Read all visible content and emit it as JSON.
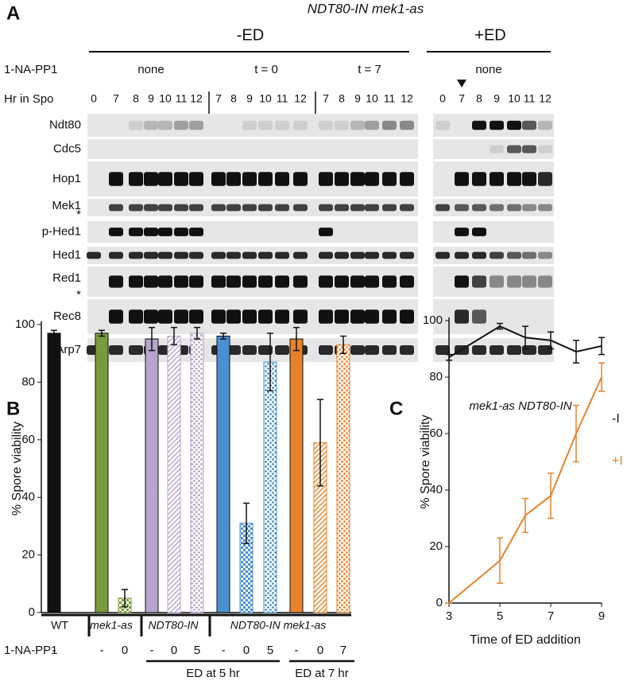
{
  "panel_a": {
    "label": "A",
    "title": "NDT80-IN mek1-as",
    "drug_label": "1-NA-PP1",
    "time_label": "Hr in Spo",
    "groups": [
      {
        "label": "-ED",
        "conditions": [
          {
            "label": "none",
            "hours": [
              0,
              7,
              8,
              9,
              10,
              11,
              12
            ]
          },
          {
            "label": "t = 0",
            "hours": [
              7,
              8,
              9,
              10,
              11,
              12
            ]
          },
          {
            "label": "t = 7",
            "hours": [
              7,
              8,
              9,
              10,
              11,
              12
            ]
          }
        ]
      },
      {
        "label": "+ED",
        "conditions": [
          {
            "label": "none",
            "hours": [
              0,
              7,
              8,
              9,
              10,
              11,
              12
            ]
          }
        ]
      }
    ],
    "rows": [
      {
        "name": "Ndt80"
      },
      {
        "name": "Cdc5"
      },
      {
        "name": "Hop1"
      },
      {
        "name": "Mek1",
        "marker": "*"
      },
      {
        "name": "p-Hed1"
      },
      {
        "name": "Hed1"
      },
      {
        "name": "Red1",
        "marker": "*"
      },
      {
        "name": "Rec8"
      },
      {
        "name": "Arp7"
      }
    ]
  },
  "chart_data": [
    {
      "type": "bar",
      "label": "B",
      "ylabel": "% Spore viability",
      "ylim": [
        0,
        100
      ],
      "yticks": [
        0,
        20,
        40,
        60,
        80,
        100
      ],
      "treatment_label": "1-NA-PP1",
      "groups": [
        {
          "label": "WT",
          "bars": [
            {
              "treatment": "-",
              "value": 97,
              "error": 1,
              "color": "#111111",
              "fill": "solid"
            }
          ]
        },
        {
          "label": "mek1-as",
          "bars": [
            {
              "treatment": "-",
              "value": 97,
              "error": 1,
              "color": "#7a9a3c",
              "fill": "solid"
            },
            {
              "treatment": "0",
              "value": 5,
              "error": 3,
              "color": "#7a9a3c",
              "fill": "checkered"
            }
          ]
        },
        {
          "label": "NDT80-IN",
          "bars": [
            {
              "treatment": "-",
              "value": 95,
              "error": 4,
              "color": "#b7a3cc",
              "fill": "solid"
            },
            {
              "treatment": "0",
              "value": 96,
              "error": 3,
              "color": "#b7a3cc",
              "fill": "hatched"
            },
            {
              "treatment": "5",
              "value": 97,
              "error": 2,
              "color": "#b7a3cc",
              "fill": "dotted"
            }
          ]
        },
        {
          "label": "NDT80-IN mek1-as",
          "bars": [
            {
              "treatment": "-",
              "value": 96,
              "error": 1,
              "color": "#4a90d0",
              "fill": "solid"
            },
            {
              "treatment": "0",
              "value": 31,
              "error": 7,
              "color": "#4a90d0",
              "fill": "checkered"
            },
            {
              "treatment": "5",
              "value": 87,
              "error": 10,
              "color": "#4a90d0",
              "fill": "dotted"
            },
            {
              "treatment": "-",
              "value": 95,
              "error": 4,
              "color": "#e8822a",
              "fill": "solid"
            },
            {
              "treatment": "0",
              "value": 59,
              "error": 15,
              "color": "#e8822a",
              "fill": "hatched"
            },
            {
              "treatment": "7",
              "value": 93,
              "error": 3,
              "color": "#e8822a",
              "fill": "dotted"
            }
          ]
        }
      ],
      "brackets": [
        {
          "label": "ED at 5 hr"
        },
        {
          "label": "ED at 7 hr"
        }
      ]
    },
    {
      "type": "line",
      "label": "C",
      "title": "mek1-as NDT80-IN",
      "xlabel": "Time of ED addition",
      "ylabel": "% Spore viability",
      "xlim": [
        3,
        9
      ],
      "xticks": [
        3,
        5,
        7,
        9
      ],
      "ylim": [
        0,
        100
      ],
      "yticks": [
        0,
        20,
        40,
        60,
        80,
        100
      ],
      "series": [
        {
          "name": "-I",
          "color": "#111111",
          "x": [
            3,
            5,
            6,
            7,
            8,
            9
          ],
          "values": [
            87,
            98,
            94,
            93,
            89,
            91
          ],
          "errors": [
            1,
            1,
            4,
            3,
            4,
            3
          ]
        },
        {
          "name": "+I",
          "color": "#e8822a",
          "x": [
            3,
            5,
            6,
            7,
            8,
            9
          ],
          "values": [
            0,
            15,
            31,
            38,
            60,
            80
          ],
          "errors": [
            0,
            8,
            6,
            8,
            10,
            5
          ]
        }
      ]
    }
  ]
}
